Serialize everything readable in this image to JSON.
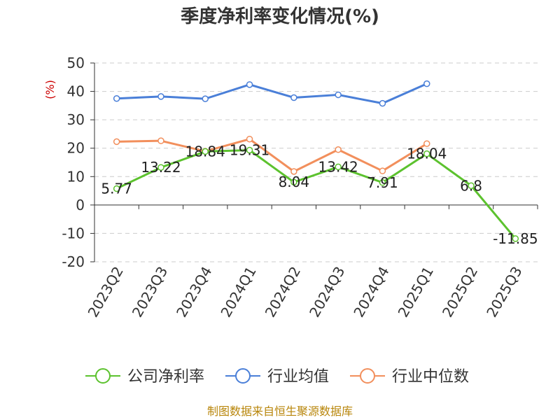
{
  "chart_data": {
    "type": "line",
    "title": "季度净利率变化情况(%)",
    "ylabel": "(%)",
    "ylim": [
      -20,
      50
    ],
    "yticks": [
      "50",
      "40",
      "30",
      "20",
      "10",
      "0",
      "-10",
      "-20"
    ],
    "categories": [
      "2023Q2",
      "2023Q3",
      "2023Q4",
      "2024Q1",
      "2024Q2",
      "2024Q3",
      "2024Q4",
      "2025Q1",
      "2025Q2",
      "2025Q3"
    ],
    "grid": true,
    "legend_position": "bottom",
    "series": [
      {
        "name": "公司净利率",
        "color": "#5cc22e",
        "values": [
          5.77,
          13.22,
          18.84,
          19.31,
          8.04,
          13.42,
          7.91,
          18.04,
          6.8,
          -11.85
        ],
        "labels": [
          "5.77",
          "13.22",
          "18.84",
          "19.31",
          "8.04",
          "13.42",
          "7.91",
          "18.04",
          "6.8",
          "-11.85"
        ]
      },
      {
        "name": "行业均值",
        "color": "#4a7fd8",
        "values": [
          37.5,
          38.2,
          37.4,
          42.4,
          37.8,
          38.8,
          35.8,
          42.7,
          null,
          null
        ]
      },
      {
        "name": "行业中位数",
        "color": "#f28f5c",
        "values": [
          22.3,
          22.6,
          18.9,
          23.2,
          11.8,
          19.5,
          12.0,
          21.6,
          null,
          null
        ]
      }
    ]
  },
  "footer": {
    "source": "制图数据来自恒生聚源数据库"
  }
}
